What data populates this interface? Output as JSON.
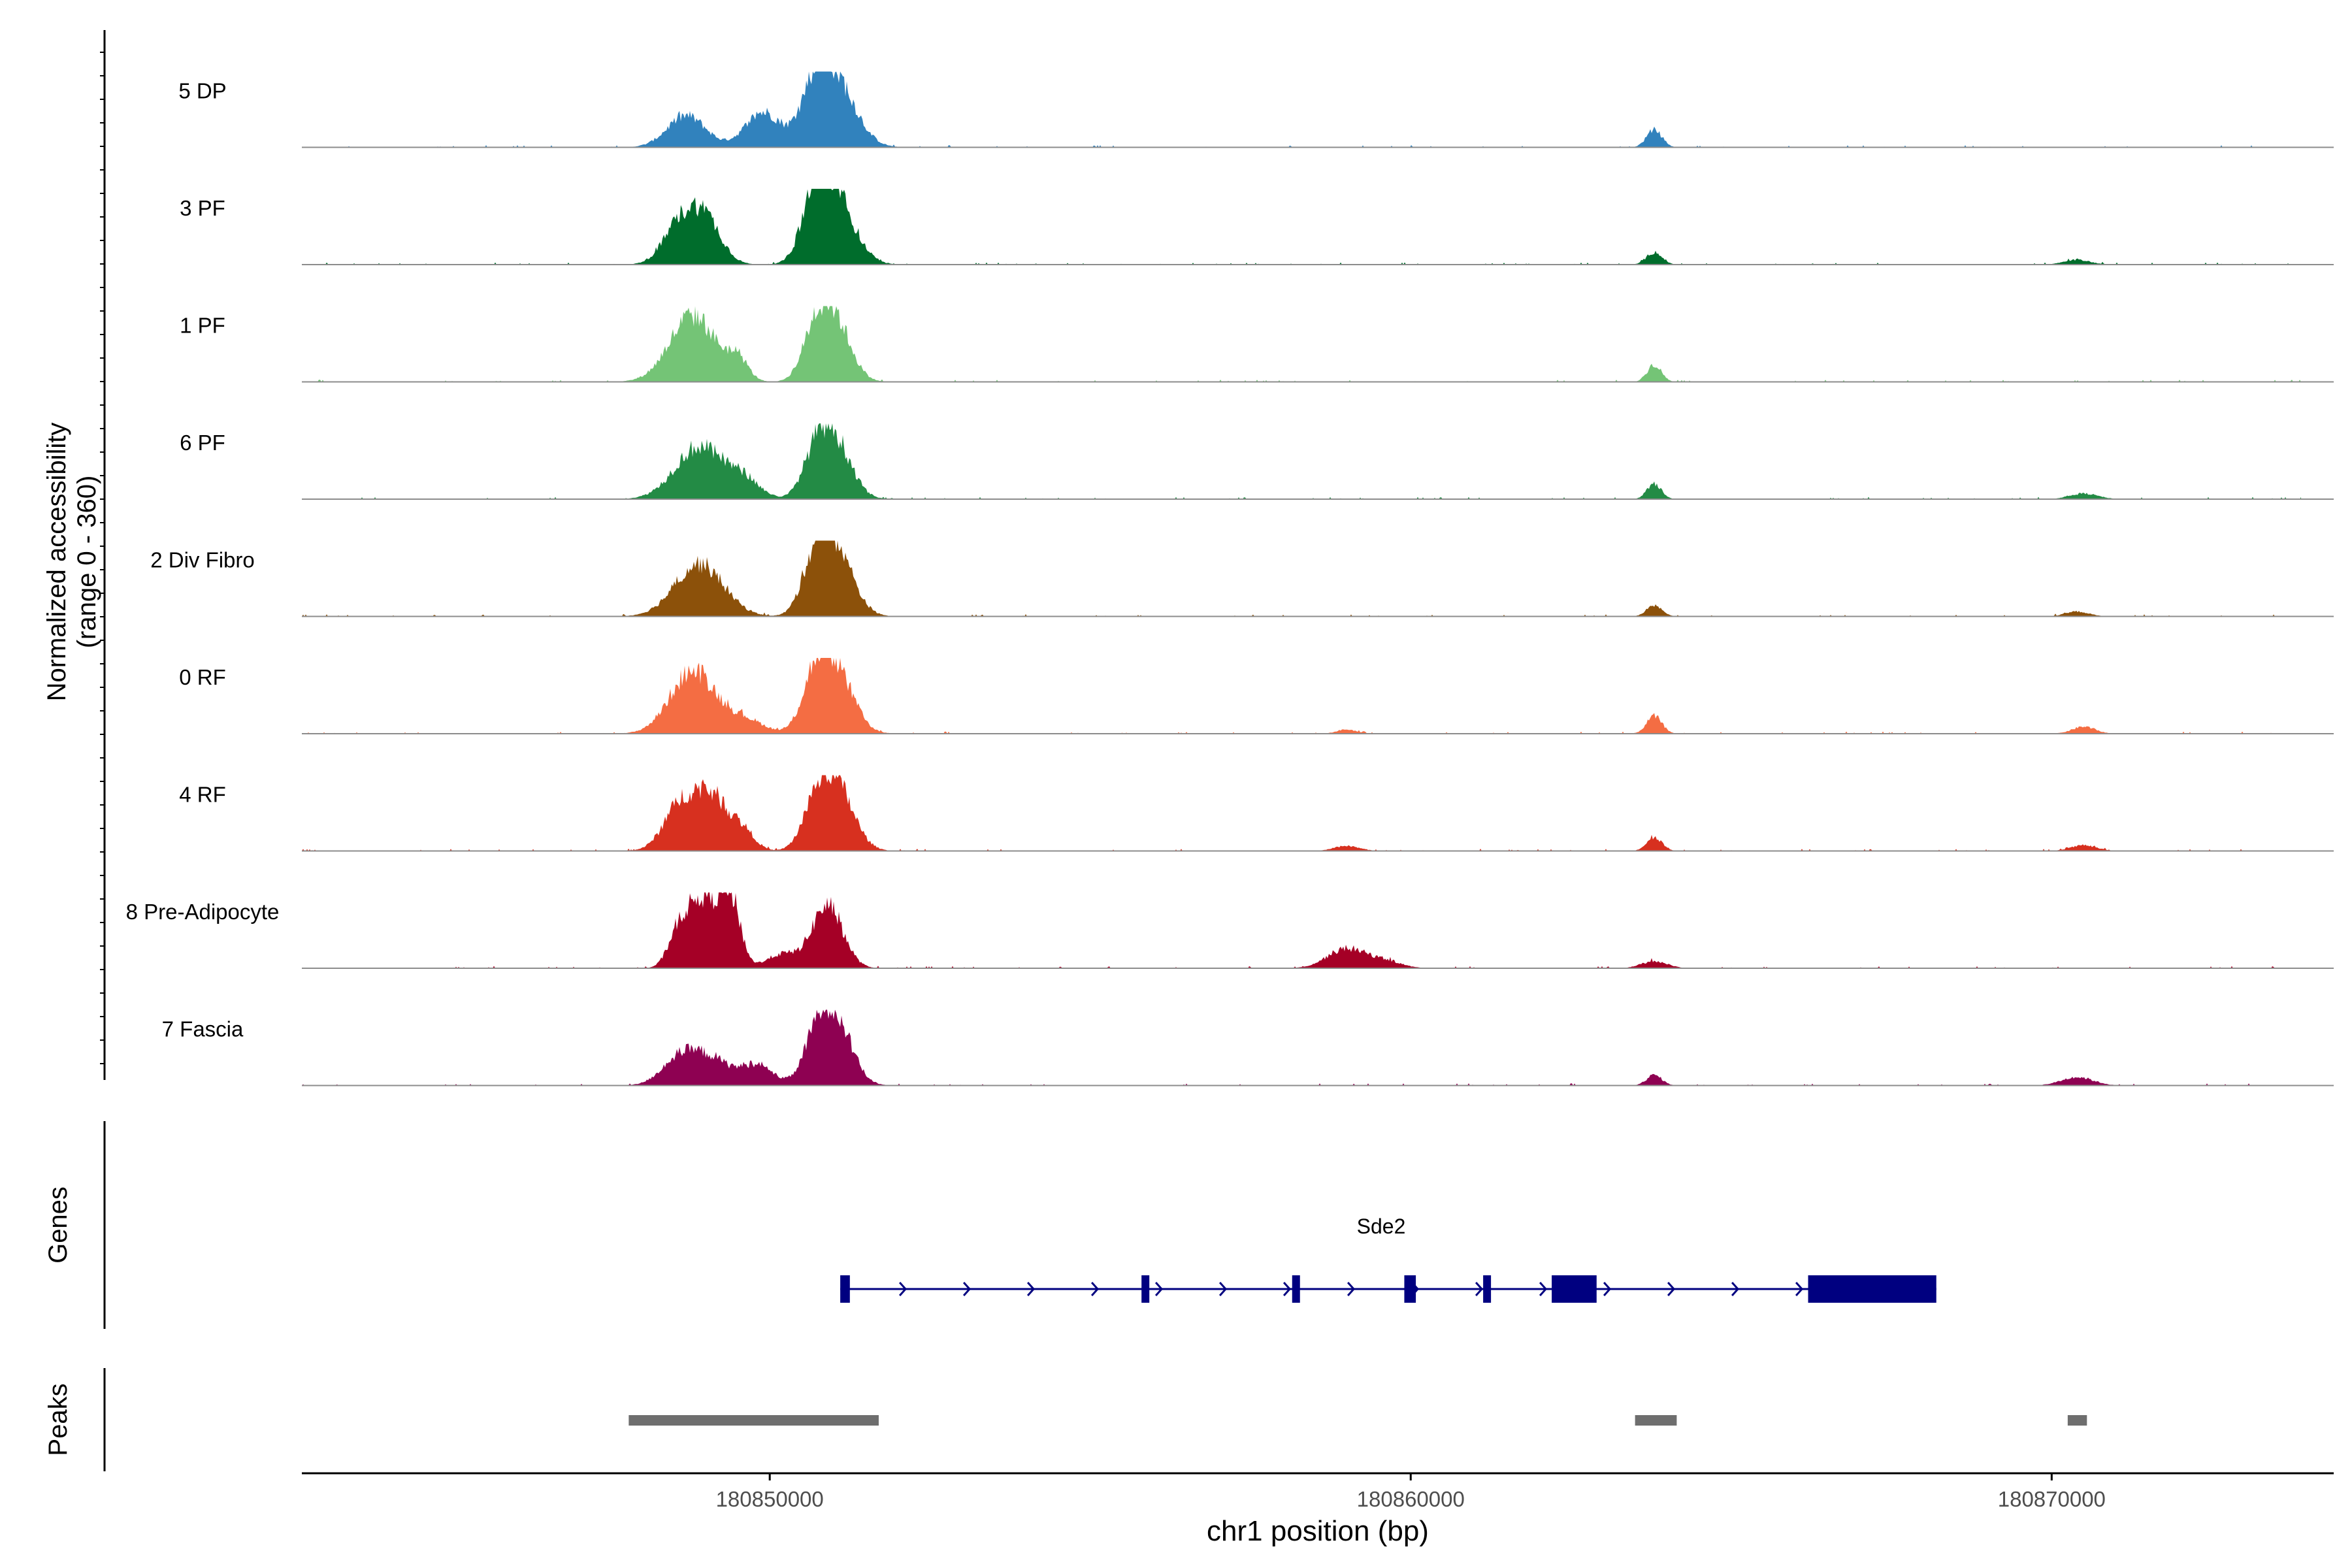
{
  "chart_data": {
    "type": "area",
    "title": "",
    "ylabel": "Normalized accessibility\n(range 0 - 360)",
    "xlabel": "chr1 position (bp)",
    "xlim": [
      180842700,
      180874400
    ],
    "ylim": [
      0,
      360
    ],
    "x_ticks": [
      180850000,
      180860000,
      180870000
    ],
    "x_tick_labels": [
      "180850000",
      "180860000",
      "180870000"
    ],
    "tracks": [
      {
        "name": "5 DP",
        "color": "#3182BD",
        "peaks": [
          [
            180848700,
            0.45,
            300
          ],
          [
            180849900,
            0.5,
            280
          ],
          [
            180850700,
            0.55,
            200
          ],
          [
            180851000,
            1.0,
            320
          ],
          [
            180863800,
            0.25,
            120
          ]
        ]
      },
      {
        "name": "3 PF",
        "color": "#006D2C",
        "peaks": [
          [
            180848600,
            0.55,
            260
          ],
          [
            180849000,
            0.6,
            250
          ],
          [
            180850700,
            0.65,
            200
          ],
          [
            180851000,
            1.0,
            300
          ],
          [
            180863800,
            0.18,
            120
          ],
          [
            180870400,
            0.07,
            200
          ]
        ]
      },
      {
        "name": "1 PF",
        "color": "#74C476",
        "peaks": [
          [
            180848800,
            0.95,
            360
          ],
          [
            180849500,
            0.28,
            160
          ],
          [
            180850700,
            0.55,
            200
          ],
          [
            180851000,
            0.9,
            250
          ],
          [
            180863800,
            0.25,
            110
          ]
        ]
      },
      {
        "name": "6 PF",
        "color": "#238B45",
        "peaks": [
          [
            180848900,
            0.75,
            380
          ],
          [
            180849600,
            0.25,
            250
          ],
          [
            180850700,
            0.45,
            200
          ],
          [
            180851000,
            0.85,
            260
          ],
          [
            180863800,
            0.22,
            110
          ],
          [
            180870500,
            0.08,
            220
          ]
        ]
      },
      {
        "name": "2 Div Fibro",
        "color": "#8C510A",
        "peaks": [
          [
            180848900,
            0.75,
            380
          ],
          [
            180850700,
            0.55,
            200
          ],
          [
            180851000,
            1.0,
            280
          ],
          [
            180863800,
            0.15,
            120
          ],
          [
            180870400,
            0.07,
            180
          ]
        ]
      },
      {
        "name": "0 RF",
        "color": "#F46D43",
        "peaks": [
          [
            180848800,
            0.9,
            350
          ],
          [
            180849600,
            0.2,
            300
          ],
          [
            180850700,
            0.55,
            200
          ],
          [
            180851000,
            0.95,
            280
          ],
          [
            180859000,
            0.06,
            150
          ],
          [
            180863800,
            0.25,
            120
          ],
          [
            180870500,
            0.1,
            180
          ]
        ]
      },
      {
        "name": "4 RF",
        "color": "#D7301F",
        "peaks": [
          [
            180848600,
            0.6,
            260
          ],
          [
            180849100,
            0.75,
            280
          ],
          [
            180849600,
            0.22,
            180
          ],
          [
            180850700,
            0.35,
            200
          ],
          [
            180851000,
            1.0,
            280
          ],
          [
            180859000,
            0.07,
            200
          ],
          [
            180863800,
            0.2,
            120
          ],
          [
            180870500,
            0.08,
            200
          ]
        ]
      },
      {
        "name": "8 Pre-Adipocyte",
        "color": "#A50026",
        "peaks": [
          [
            180848600,
            0.55,
            170
          ],
          [
            180849000,
            1.0,
            220
          ],
          [
            180849400,
            0.9,
            150
          ],
          [
            180850200,
            0.2,
            250
          ],
          [
            180850900,
            0.9,
            240
          ],
          [
            180859000,
            0.28,
            300
          ],
          [
            180859600,
            0.1,
            250
          ],
          [
            180863800,
            0.1,
            200
          ]
        ]
      },
      {
        "name": "7 Fascia",
        "color": "#8E0152",
        "peaks": [
          [
            180848600,
            0.4,
            280
          ],
          [
            180849100,
            0.35,
            280
          ],
          [
            180849800,
            0.3,
            250
          ],
          [
            180850700,
            0.4,
            200
          ],
          [
            180851000,
            1.0,
            260
          ],
          [
            180863800,
            0.15,
            120
          ],
          [
            180870400,
            0.12,
            250
          ]
        ]
      }
    ],
    "genes": {
      "label": "Genes",
      "gene_name": "Sde2",
      "strand": "+",
      "color": "#000080",
      "start": 180851100,
      "end": 180868200,
      "exons": [
        [
          180851100,
          180851250
        ],
        [
          180855800,
          180855920
        ],
        [
          180858150,
          180858250
        ],
        [
          180859900,
          180860080
        ],
        [
          180861130,
          180861230
        ],
        [
          180862200,
          180862900
        ],
        [
          180866200,
          180868200
        ]
      ]
    },
    "peaks_track": {
      "label": "Peaks",
      "color": "#6E6E6E",
      "regions": [
        [
          180847800,
          180851700
        ],
        [
          180863500,
          180864150
        ],
        [
          180870250,
          180870550
        ]
      ]
    }
  }
}
